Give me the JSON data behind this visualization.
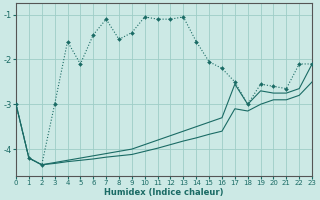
{
  "bg_color": "#cce9e5",
  "grid_color": "#9ecdc7",
  "line_color": "#1a6b65",
  "xlabel": "Humidex (Indice chaleur)",
  "xlim": [
    0,
    23
  ],
  "ylim": [
    -4.6,
    -0.75
  ],
  "yticks": [
    -4,
    -3,
    -2,
    -1
  ],
  "xticks": [
    0,
    1,
    2,
    3,
    4,
    5,
    6,
    7,
    8,
    9,
    10,
    11,
    12,
    13,
    14,
    15,
    16,
    17,
    18,
    19,
    20,
    21,
    22,
    23
  ],
  "line_dot_x": [
    0,
    1,
    2,
    3,
    4,
    5,
    6,
    7,
    8,
    9,
    10,
    11,
    12,
    13,
    14,
    15,
    16,
    17,
    18,
    19,
    20,
    21,
    22,
    23
  ],
  "line_dot_y": [
    -3.0,
    -4.2,
    -4.35,
    -3.0,
    -1.6,
    -2.1,
    -1.45,
    -1.1,
    -1.55,
    -1.4,
    -1.05,
    -1.1,
    -1.1,
    -1.05,
    -1.6,
    -2.05,
    -2.2,
    -2.5,
    -3.0,
    -2.55,
    -2.6,
    -2.65,
    -2.1,
    -2.1
  ],
  "line_upper_x": [
    0,
    1,
    2,
    3,
    4,
    5,
    6,
    7,
    8,
    9,
    10,
    11,
    12,
    13,
    14,
    15,
    16,
    17,
    18,
    19,
    20,
    21,
    22,
    23
  ],
  "line_upper_y": [
    -3.0,
    -4.2,
    -4.35,
    -4.3,
    -4.25,
    -4.2,
    -4.15,
    -4.1,
    -4.05,
    -4.0,
    -3.9,
    -3.8,
    -3.7,
    -3.6,
    -3.5,
    -3.4,
    -3.3,
    -2.55,
    -3.0,
    -2.7,
    -2.75,
    -2.75,
    -2.65,
    -2.1
  ],
  "line_lower_x": [
    0,
    1,
    2,
    3,
    4,
    5,
    6,
    7,
    8,
    9,
    10,
    11,
    12,
    13,
    14,
    15,
    16,
    17,
    18,
    19,
    20,
    21,
    22,
    23
  ],
  "line_lower_y": [
    -3.0,
    -4.2,
    -4.35,
    -4.32,
    -4.28,
    -4.25,
    -4.22,
    -4.18,
    -4.15,
    -4.12,
    -4.05,
    -3.98,
    -3.9,
    -3.82,
    -3.75,
    -3.67,
    -3.6,
    -3.1,
    -3.15,
    -3.0,
    -2.9,
    -2.9,
    -2.8,
    -2.5
  ]
}
